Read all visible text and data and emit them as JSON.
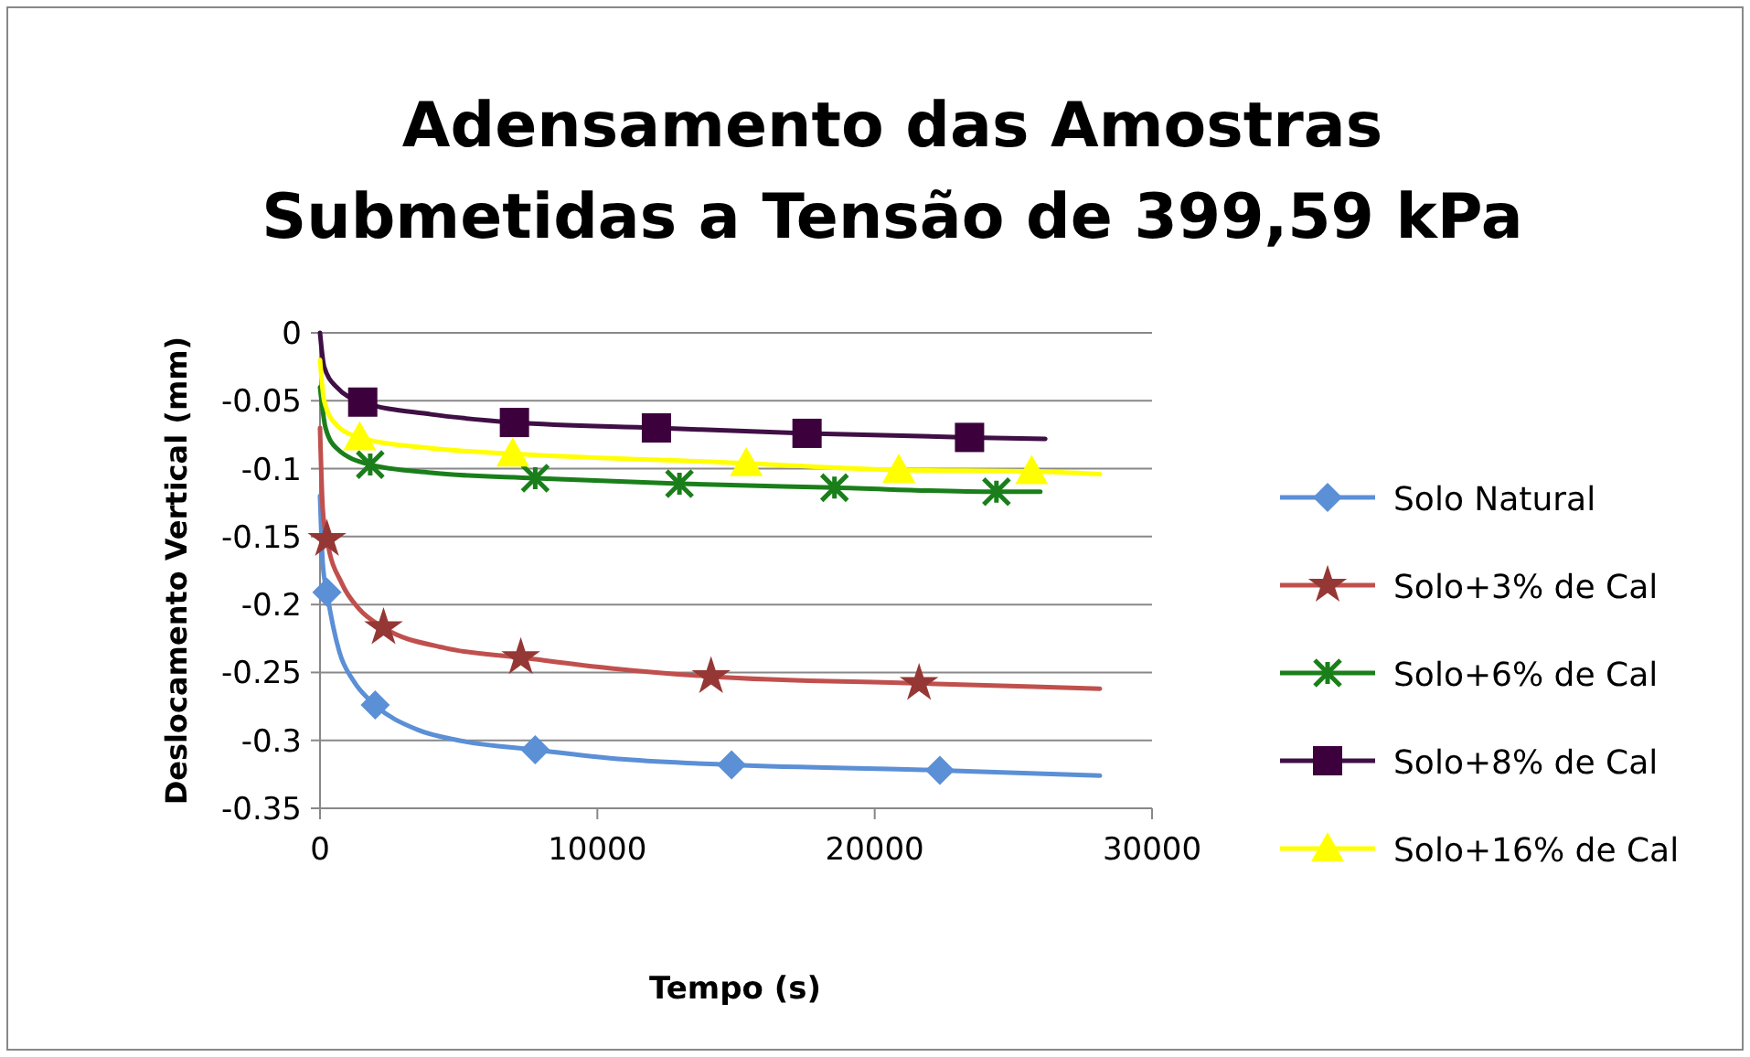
{
  "chart_data": {
    "type": "line",
    "title": "Adensamento das Amostras\nSubmetidas a Tensão de 399,59 kPa",
    "xlabel": "Tempo (s)",
    "ylabel": "Deslocamento Vertical (mm)",
    "xlim": [
      0,
      30000
    ],
    "xticks": [
      0,
      10000,
      20000,
      30000
    ],
    "ylim": [
      -0.35,
      0
    ],
    "yticks": [
      0,
      -0.05,
      -0.1,
      -0.15,
      -0.2,
      -0.25,
      -0.3,
      -0.35
    ],
    "grid": "y",
    "legend": "right",
    "series": [
      {
        "name": "Solo Natural",
        "color": "#5b8fd6",
        "marker": "none",
        "x": [
          0,
          100,
          250,
          700,
          1200,
          1990,
          3500,
          5000,
          7760,
          11000,
          14840,
          22350,
          28120
        ],
        "values": [
          -0.12,
          -0.17,
          -0.191,
          -0.235,
          -0.256,
          -0.274,
          -0.292,
          -0.3,
          -0.307,
          -0.314,
          -0.318,
          -0.322,
          -0.326
        ]
      },
      {
        "type": "scatter",
        "color": "#5b8fd6",
        "marker": "diamond",
        "x": [
          250,
          1990,
          7760,
          14840,
          22350
        ],
        "values": [
          -0.191,
          -0.274,
          -0.307,
          -0.318,
          -0.322
        ]
      },
      {
        "name": "Solo+3% de Cal",
        "color": "#c0504d",
        "marker": "none",
        "x": [
          0,
          100,
          250,
          800,
          1400,
          2290,
          4500,
          7240,
          10500,
          14100,
          21600,
          28120
        ],
        "values": [
          -0.07,
          -0.13,
          -0.152,
          -0.185,
          -0.203,
          -0.217,
          -0.232,
          -0.239,
          -0.247,
          -0.253,
          -0.258,
          -0.262
        ]
      },
      {
        "type": "scatter",
        "color": "#953735",
        "marker": "star",
        "x": [
          250,
          2290,
          7240,
          14100,
          21600
        ],
        "values": [
          -0.152,
          -0.217,
          -0.239,
          -0.253,
          -0.258
        ]
      },
      {
        "name": "Solo+6% de Cal",
        "color": "#1a7f1a",
        "marker": "none",
        "x": [
          0,
          200,
          600,
          1810,
          4000,
          7760,
          12960,
          18550,
          24390,
          25970
        ],
        "values": [
          -0.04,
          -0.07,
          -0.085,
          -0.097,
          -0.103,
          -0.107,
          -0.111,
          -0.114,
          -0.117,
          -0.117
        ]
      },
      {
        "type": "scatter",
        "color": "#1a7f1a",
        "marker": "cross",
        "x": [
          1810,
          7760,
          12960,
          18550,
          24390
        ],
        "values": [
          -0.097,
          -0.107,
          -0.111,
          -0.114,
          -0.117
        ]
      },
      {
        "name": "Solo+8% de Cal",
        "color": "#3f0f45",
        "marker": "none",
        "x": [
          0,
          150,
          600,
          1540,
          4000,
          7010,
          12130,
          17560,
          23420,
          26150
        ],
        "values": [
          0,
          -0.025,
          -0.04,
          -0.051,
          -0.06,
          -0.066,
          -0.07,
          -0.074,
          -0.077,
          -0.078
        ]
      },
      {
        "type": "scatter",
        "color": "#3c003c",
        "marker": "square",
        "x": [
          1540,
          7010,
          12130,
          17560,
          23420
        ],
        "values": [
          -0.051,
          -0.066,
          -0.07,
          -0.074,
          -0.077
        ]
      },
      {
        "name": "Solo+16% de Cal",
        "color": "#ffff00",
        "marker": "none",
        "x": [
          0,
          150,
          600,
          1430,
          4000,
          6950,
          15370,
          20870,
          25660,
          28120
        ],
        "values": [
          -0.02,
          -0.05,
          -0.068,
          -0.077,
          -0.085,
          -0.089,
          -0.096,
          -0.101,
          -0.102,
          -0.104
        ]
      },
      {
        "type": "scatter",
        "color": "#ffff00",
        "marker": "triangle",
        "x": [
          1430,
          6950,
          15370,
          20870,
          25660
        ],
        "values": [
          -0.077,
          -0.089,
          -0.096,
          -0.101,
          -0.102
        ]
      }
    ]
  }
}
